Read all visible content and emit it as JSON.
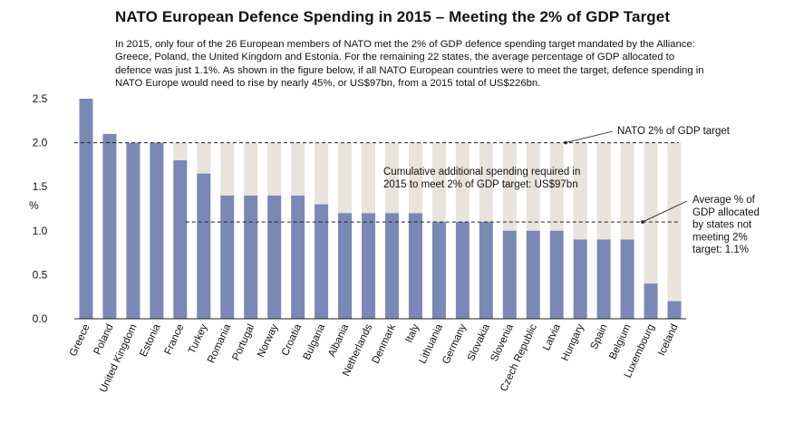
{
  "chart_data": {
    "type": "bar",
    "title": "NATO European Defence Spending in 2015 – Meeting the 2% of GDP Target",
    "subtitle": "In 2015, only four of the 26 European members of NATO met the 2% of GDP defence spending target mandated by the Alliance: Greece, Poland, the United Kingdom and Estonia. For the remaining 22 states, the average percentage of GDP allocated to defence was just 1.1%. As shown in the figure below, if all NATO European countries were to meet the target, defence spending in NATO Europe would need to rise by nearly 45%, or US$97bn, from a 2015 total of US$226bn.",
    "ylabel": "%",
    "ylim": [
      0,
      2.5
    ],
    "yticks": [
      "0.0",
      "0.5",
      "1.0",
      "1.5",
      "2.0",
      "2.5"
    ],
    "categories": [
      "Greece",
      "Poland",
      "United Kingdom",
      "Estonia",
      "France",
      "Turkey",
      "Romania",
      "Portugal",
      "Norway",
      "Croatia",
      "Bulgaria",
      "Albania",
      "Netherlands",
      "Denmark",
      "Italy",
      "Lithuania",
      "Germany",
      "Slovakia",
      "Slovenia",
      "Czech Republic",
      "Latvia",
      "Hungary",
      "Spain",
      "Belgium",
      "Luxembourg",
      "Iceland"
    ],
    "series": [
      {
        "values": [
          2.5,
          2.1,
          2.0,
          2.0,
          1.8,
          1.65,
          1.4,
          1.4,
          1.4,
          1.4,
          1.3,
          1.2,
          1.2,
          1.2,
          1.2,
          1.1,
          1.1,
          1.1,
          1.0,
          1.0,
          1.0,
          0.9,
          0.9,
          0.9,
          0.4,
          0.2
        ],
        "color": "#7a88b5"
      }
    ],
    "gap_to_target_color": "#e8e3dd",
    "reference_lines": [
      {
        "value": 2.0,
        "label": "NATO 2% of GDP target"
      },
      {
        "value": 1.1,
        "label_lines": [
          "Average % of",
          "GDP allocated",
          "by states not",
          "meeting 2%",
          "target: 1.1%"
        ]
      }
    ],
    "annotation_lines": [
      "Cumulative additional spending required in",
      "2015 to meet 2% of GDP target: US$97bn"
    ],
    "grid": false
  }
}
